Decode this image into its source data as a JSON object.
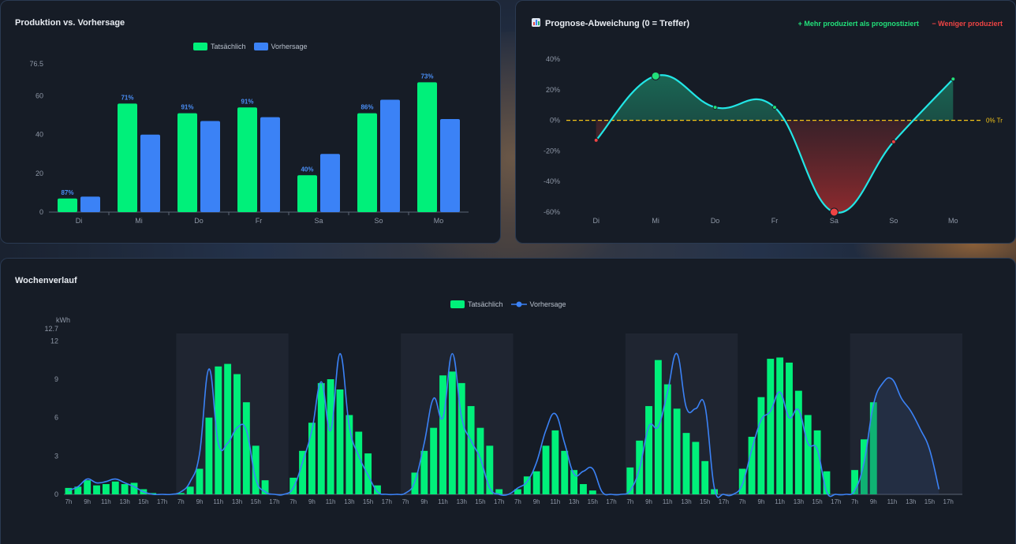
{
  "colors": {
    "actual": "#00f07a",
    "forecast": "#3b82f6",
    "deviation_line": "#22e6e6",
    "zero_line": "#f5c518",
    "positive": "#22e07a",
    "negative": "#ef4444",
    "axis_text": "#8e97a6"
  },
  "chart_data": [
    {
      "id": "production",
      "type": "bar",
      "title": "Produktion vs. Vorhersage",
      "categories": [
        "Di",
        "Mi",
        "Do",
        "Fr",
        "Sa",
        "So",
        "Mo"
      ],
      "series": [
        {
          "name": "Tatsächlich",
          "values": [
            7,
            56,
            51,
            54,
            19,
            51,
            67
          ]
        },
        {
          "name": "Vorhersage",
          "values": [
            8,
            40,
            47,
            49,
            30,
            58,
            48
          ]
        }
      ],
      "bar_labels": [
        "87%",
        "71%",
        "91%",
        "91%",
        "40%",
        "86%",
        "73%"
      ],
      "ylim": [
        0,
        76.5
      ],
      "yticks": [
        "0",
        "20",
        "40",
        "60",
        "76.5"
      ],
      "ytick_values": [
        0,
        20,
        40,
        60,
        76.5
      ],
      "legend": "top-center"
    },
    {
      "id": "deviation",
      "type": "line",
      "title": "Prognose-Abweichung (0 = Treffer)",
      "categories": [
        "Di",
        "Mi",
        "Do",
        "Fr",
        "Sa",
        "So",
        "Mo"
      ],
      "values": [
        -13,
        29,
        8.5,
        8.5,
        -60,
        -14,
        27
      ],
      "ylim": [
        -60,
        40
      ],
      "yticks": [
        "-60%",
        "-40%",
        "-20%",
        "0%",
        "20%",
        "40%"
      ],
      "ytick_values": [
        -60,
        -40,
        -20,
        0,
        20,
        40
      ],
      "zero_label": "0% Tr",
      "legend_positive": "+ Mehr produziert als prognostiziert",
      "legend_negative": "− Weniger produziert"
    },
    {
      "id": "week",
      "type": "bar",
      "title": "Wochenverlauf",
      "ylabel": "kWh",
      "ylim": [
        0,
        12.7
      ],
      "yticks": [
        "0",
        "3",
        "6",
        "9",
        "12",
        "12.7"
      ],
      "ytick_values": [
        0,
        3,
        6,
        9,
        12,
        12.7
      ],
      "day_hours": [
        "7h",
        "9h",
        "11h",
        "13h",
        "15h",
        "17h"
      ],
      "series": [
        {
          "name": "Tatsächlich",
          "days": [
            [
              0.5,
              0.6,
              1.1,
              0.7,
              0.8,
              1.0,
              0.8,
              0.9,
              0.4,
              0.1,
              0.0,
              0.0
            ],
            [
              0.1,
              0.6,
              2.0,
              6.0,
              10.0,
              10.2,
              9.4,
              7.2,
              3.8,
              1.1,
              0.0,
              0.0
            ],
            [
              1.3,
              3.4,
              5.6,
              8.7,
              9.0,
              8.2,
              6.2,
              4.9,
              3.2,
              0.7,
              0.0,
              0.0
            ],
            [
              0.0,
              1.7,
              3.4,
              5.2,
              9.3,
              9.6,
              8.7,
              6.9,
              5.2,
              3.8,
              0.4,
              0.0
            ],
            [
              0.4,
              1.4,
              1.8,
              3.8,
              5.0,
              3.4,
              1.9,
              0.8,
              0.3,
              0.0,
              0.0,
              0.0
            ],
            [
              2.1,
              4.2,
              6.9,
              10.5,
              8.6,
              6.7,
              4.8,
              4.1,
              2.6,
              0.4,
              0.0,
              0.0
            ],
            [
              2.0,
              4.5,
              7.6,
              10.6,
              10.7,
              10.3,
              8.1,
              6.2,
              5.0,
              1.8,
              0.0,
              0.0
            ],
            [
              1.9,
              4.3,
              7.2
            ]
          ]
        },
        {
          "name": "Vorhersage",
          "days": [
            [
              0.3,
              0.6,
              1.2,
              0.9,
              1.0,
              1.2,
              0.9,
              0.6,
              0.2,
              0.0,
              0.0,
              0.0
            ],
            [
              0.2,
              1.0,
              3.2,
              9.8,
              4.0,
              4.0,
              5.2,
              5.0,
              1.2,
              0.2,
              0.0,
              0.0
            ],
            [
              0.5,
              2.5,
              5.0,
              8.8,
              5.0,
              11.0,
              5.3,
              3.0,
              1.5,
              0.2,
              0.0,
              0.0
            ],
            [
              0.1,
              1.0,
              4.0,
              7.5,
              6.0,
              11.0,
              6.0,
              4.2,
              2.8,
              0.5,
              0.0,
              0.0
            ],
            [
              0.5,
              1.0,
              2.5,
              5.0,
              6.3,
              4.0,
              1.6,
              1.8,
              2.0,
              0.2,
              0.0,
              0.0
            ],
            [
              0.3,
              2.0,
              5.3,
              5.3,
              8.0,
              11.0,
              6.8,
              6.7,
              6.9,
              0.5,
              0.0,
              0.0
            ],
            [
              0.8,
              3.5,
              5.8,
              6.5,
              8.0,
              6.0,
              6.6,
              4.0,
              3.5,
              0.2,
              0.0,
              0.0
            ],
            [
              0.3,
              2.5,
              7.0,
              8.7,
              9.0,
              7.5,
              6.5,
              5.1,
              3.5,
              0.4
            ]
          ]
        }
      ],
      "legend": "top-center"
    }
  ]
}
